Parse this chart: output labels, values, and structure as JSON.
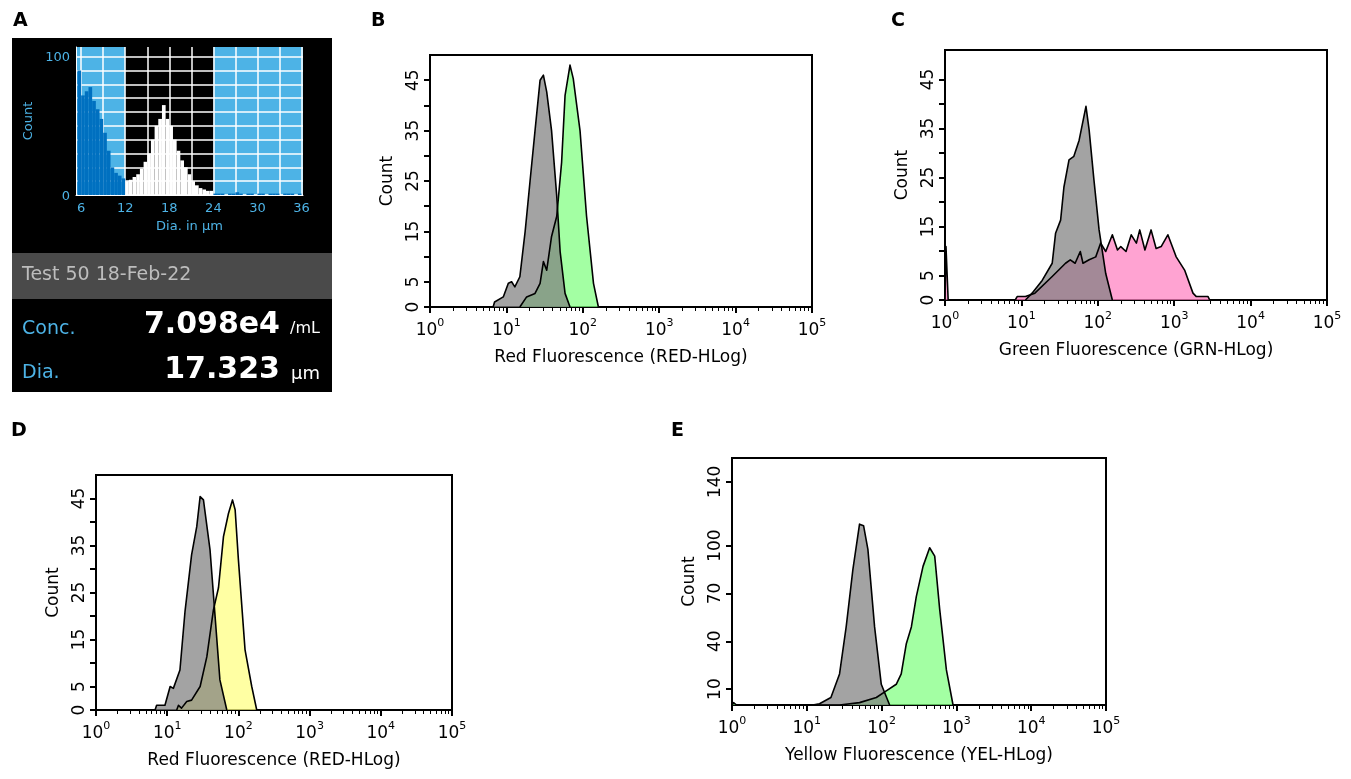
{
  "chart_data": [
    {
      "type": "histogram",
      "title": "A",
      "xlabel": "Dia. in µm",
      "ylabel": "Count",
      "bins": [
        5.5,
        6,
        6.5,
        7,
        7.5,
        8,
        8.5,
        9,
        9.5,
        10,
        10.5,
        11,
        11.5,
        12,
        12.5,
        13,
        13.5,
        14,
        14.5,
        15,
        15.5,
        16,
        16.5,
        17,
        17.5,
        18,
        18.5,
        19,
        19.5,
        20,
        20.5,
        21,
        21.5,
        22,
        22.5,
        23,
        23.5,
        24,
        24.5,
        25,
        25.5,
        26,
        26.5,
        27,
        27.5,
        28,
        28.5,
        29,
        29.5,
        30,
        30.5,
        31,
        31.5,
        32,
        32.5,
        33,
        33.5,
        34,
        34.5,
        35,
        35.5,
        36
      ],
      "values": [
        90,
        72,
        75,
        78,
        68,
        62,
        55,
        45,
        32,
        20,
        16,
        14,
        12,
        10,
        11,
        13,
        15,
        19,
        24,
        30,
        40,
        50,
        55,
        65,
        55,
        50,
        40,
        32,
        25,
        20,
        15,
        10,
        7,
        5,
        4,
        3,
        3,
        1,
        1,
        1,
        0,
        1,
        1,
        2,
        1,
        0,
        1,
        1,
        0,
        1,
        1,
        0,
        1,
        1,
        1,
        0,
        1,
        1,
        1,
        0,
        1
      ],
      "colors": [
        "#0070c0",
        "#0070c0",
        "#0070c0",
        "#0070c0",
        "#0070c0",
        "#0070c0",
        "#0070c0",
        "#0070c0",
        "#0070c0",
        "#0070c0",
        "#0070c0",
        "#0070c0",
        "#0070c0",
        "#ffffff",
        "#ffffff",
        "#ffffff",
        "#ffffff",
        "#ffffff",
        "#ffffff",
        "#ffffff",
        "#ffffff",
        "#ffffff",
        "#ffffff",
        "#ffffff",
        "#ffffff",
        "#ffffff",
        "#ffffff",
        "#ffffff",
        "#ffffff",
        "#ffffff",
        "#ffffff",
        "#ffffff",
        "#ffffff",
        "#ffffff",
        "#ffffff",
        "#ffffff",
        "#ffffff",
        "#0070c0",
        "#0070c0",
        "#0070c0",
        "#0070c0",
        "#0070c0",
        "#0070c0",
        "#0070c0",
        "#0070c0",
        "#0070c0",
        "#0070c0",
        "#0070c0",
        "#0070c0",
        "#0070c0",
        "#0070c0",
        "#0070c0",
        "#0070c0",
        "#0070c0",
        "#0070c0",
        "#0070c0",
        "#0070c0",
        "#0070c0",
        "#0070c0",
        "#0070c0",
        "#0070c0"
      ],
      "xlim": [
        5.3,
        36.2
      ],
      "xticks": [
        6,
        {
          "value": 9,
          "label": null
        },
        12,
        {
          "value": 15,
          "label": null
        },
        18,
        {
          "value": 21,
          "label": null
        },
        24,
        {
          "value": 27,
          "label": null
        },
        30,
        {
          "value": 33,
          "label": null
        },
        36
      ],
      "ylim": [
        0,
        107
      ],
      "yticks": [
        0,
        {
          "value": 10,
          "label": null
        },
        {
          "value": 20,
          "label": null
        },
        {
          "value": 30,
          "label": null
        },
        {
          "value": 40,
          "label": null
        },
        {
          "value": 50,
          "label": null
        },
        {
          "value": 60,
          "label": null
        },
        {
          "value": 70,
          "label": null
        },
        {
          "value": 80,
          "label": null
        },
        {
          "value": 90,
          "label": null
        },
        100
      ],
      "grid": true,
      "bands": [
        {
          "axis": "x",
          "from": 5.3,
          "to": 12,
          "color": "#4db3e6"
        },
        {
          "axis": "x",
          "from": 24,
          "to": 36.2,
          "color": "#4db3e6"
        }
      ],
      "annotations": [
        "Test 50  18-Feb-22",
        "Conc.",
        "7.098e4",
        "/mL",
        "Dia.",
        "17.323",
        "µm"
      ]
    },
    {
      "type": "area",
      "title": "B",
      "xlabel": "Red Fluorescence (RED-HLog)",
      "ylabel": "Count",
      "log": "x",
      "xlim": [
        1,
        100000
      ],
      "xticks": [
        {
          "value": 1,
          "label": "10$^{0}$"
        },
        {
          "value": 10,
          "label": "10$^{1}$"
        },
        {
          "value": 100,
          "label": "10$^{2}$"
        },
        {
          "value": 1000,
          "label": "10$^{3}$"
        },
        {
          "value": 10000,
          "label": "10$^{4}$"
        },
        {
          "value": 100000,
          "label": "10$^{5}$"
        }
      ],
      "ylim": [
        0,
        50
      ],
      "yticks": [
        0,
        5,
        {
          "value": 10,
          "label": null
        },
        15,
        {
          "value": 20,
          "label": null
        },
        25,
        {
          "value": 30,
          "label": null
        },
        35,
        {
          "value": 40,
          "label": null
        },
        45
      ],
      "series": [
        {
          "color": "#80ff80",
          "x": [
            15,
            18.4,
            23.7,
            27.6,
            30.5,
            33.7,
            39,
            45.6,
            52.8,
            58.6,
            68,
            75,
            92,
            112,
            138,
            160
          ],
          "values": [
            0,
            2,
            2.7,
            4.7,
            9,
            7.3,
            14,
            18,
            28.7,
            42,
            48,
            45.3,
            35,
            18,
            4.7,
            0
          ]
        },
        {
          "color": "#808080",
          "x": [
            6.7,
            7,
            9.1,
            10.6,
            11.7,
            12.9,
            15,
            17.6,
            20.4,
            23.7,
            27.6,
            30.5,
            33.7,
            39,
            45.6,
            50.5,
            58.6,
            68
          ],
          "values": [
            0,
            1,
            2,
            4.7,
            5,
            4,
            6,
            15,
            25,
            35,
            45,
            46,
            42.7,
            35,
            22,
            11,
            2.7,
            0
          ]
        }
      ]
    },
    {
      "type": "area",
      "title": "C",
      "xlabel": "Green Fluorescence (GRN-HLog)",
      "ylabel": "Count",
      "log": "x",
      "xlim": [
        1,
        100000
      ],
      "xticks": [
        {
          "value": 1,
          "label": "10$^{0}$"
        },
        {
          "value": 10,
          "label": "10$^{1}$"
        },
        {
          "value": 100,
          "label": "10$^{2}$"
        },
        {
          "value": 1000,
          "label": "10$^{3}$"
        },
        {
          "value": 10000,
          "label": "10$^{4}$"
        },
        {
          "value": 100000,
          "label": "10$^{5}$"
        }
      ],
      "ylim": [
        0,
        51
      ],
      "yticks": [
        0,
        5,
        {
          "value": 10,
          "label": null
        },
        15,
        {
          "value": 20,
          "label": null
        },
        25,
        {
          "value": 30,
          "label": null
        },
        35,
        {
          "value": 40,
          "label": null
        },
        45
      ],
      "series": [
        {
          "color": "#ff80c0",
          "x": [
            1,
            1.03,
            1.1,
            8.3,
            8.8,
            11.3,
            15,
            25.3,
            37.8,
            43.6,
            50.5,
            59,
            64,
            77,
            94,
            109,
            127,
            155,
            181,
            200,
            234,
            274,
            320,
            354,
            414,
            498,
            580,
            675,
            826,
            1062,
            1368,
            1761,
            1950,
            2773,
            2917
          ],
          "values": [
            0,
            10.9,
            0,
            0,
            0.7,
            0.7,
            1.4,
            4.8,
            7.5,
            8.2,
            7.5,
            9.9,
            7.5,
            8.2,
            8.8,
            11.6,
            9.9,
            13.3,
            10.2,
            10.9,
            9.9,
            13.3,
            11.6,
            14.3,
            10.2,
            14.3,
            10.5,
            10.9,
            13.3,
            8.8,
            6.1,
            1.4,
            0.7,
            0.7,
            0
          ]
        },
        {
          "color": "#808080",
          "x": [
            11.3,
            13.8,
            18.7,
            25.3,
            28,
            32.6,
            36,
            42,
            48.6,
            57,
            70,
            77,
            89,
            104,
            127,
            155
          ],
          "values": [
            0,
            1.4,
            4,
            7.5,
            13.6,
            16.3,
            23,
            28.6,
            29.3,
            32.6,
            39.5,
            34.7,
            24.5,
            14.3,
            5.4,
            0
          ]
        }
      ]
    },
    {
      "type": "area",
      "title": "D",
      "xlabel": "Red Fluorescence (RED-HLog)",
      "ylabel": "Count",
      "log": "x",
      "xlim": [
        1,
        100000
      ],
      "xticks": [
        {
          "value": 1,
          "label": "10$^{0}$"
        },
        {
          "value": 10,
          "label": "10$^{1}$"
        },
        {
          "value": 100,
          "label": "10$^{2}$"
        },
        {
          "value": 1000,
          "label": "10$^{3}$"
        },
        {
          "value": 10000,
          "label": "10$^{4}$"
        },
        {
          "value": 100000,
          "label": "10$^{5}$"
        }
      ],
      "ylim": [
        0,
        50
      ],
      "yticks": [
        0,
        5,
        {
          "value": 10,
          "label": null
        },
        15,
        {
          "value": 20,
          "label": null
        },
        25,
        {
          "value": 30,
          "label": null
        },
        35,
        {
          "value": 40,
          "label": null
        },
        45
      ],
      "series": [
        {
          "color": "#ffff80",
          "x": [
            13.6,
            14.4,
            15.9,
            18.8,
            22,
            29,
            36,
            44.6,
            52.5,
            61.7,
            72.5,
            82.6,
            90,
            100,
            124,
            154,
            181
          ],
          "values": [
            0,
            1,
            0.4,
            1.8,
            2.1,
            5,
            11.3,
            21.3,
            26,
            36.9,
            41.8,
            44.7,
            42.6,
            32,
            12.8,
            5,
            0
          ]
        },
        {
          "color": "#808080",
          "x": [
            6.75,
            7.1,
            9.3,
            11,
            12.2,
            15.1,
            17.8,
            22,
            26,
            29,
            32.3,
            40,
            47,
            55,
            68.7
          ],
          "values": [
            0,
            1,
            1,
            5,
            4.6,
            8.5,
            21,
            33,
            39,
            45.4,
            44.7,
            34,
            20,
            6.4,
            0
          ]
        }
      ]
    },
    {
      "type": "area",
      "title": "E",
      "xlabel": "Yellow Fluorescence (YEL-HLog)",
      "ylabel": "Count",
      "log": "x",
      "xlim": [
        1,
        100000
      ],
      "xticks": [
        {
          "value": 1,
          "label": "10$^{0}$"
        },
        {
          "value": 10,
          "label": "10$^{1}$"
        },
        {
          "value": 100,
          "label": "10$^{2}$"
        },
        {
          "value": 1000,
          "label": "10$^{3}$"
        },
        {
          "value": 10000,
          "label": "10$^{4}$"
        },
        {
          "value": 100000,
          "label": "10$^{5}$"
        }
      ],
      "ylim": [
        0,
        155
      ],
      "yticks": [
        10,
        40,
        70,
        100,
        140
      ],
      "series": [
        {
          "color": "#80ff80",
          "x": [
            1,
            1.05,
            1.15,
            27.4,
            50.7,
            85,
            115.5,
            157,
            183,
            214,
            250,
            291,
            358,
            439,
            513,
            598,
            735,
            902
          ],
          "values": [
            0,
            1.5,
            0,
            0,
            1.5,
            4.7,
            8.9,
            13,
            19.5,
            38.5,
            49,
            68,
            87,
            98.7,
            93.4,
            60,
            22,
            0
          ]
        },
        {
          "color": "#808080",
          "x": [
            12,
            14.8,
            21,
            27.4,
            33.6,
            41.3,
            50.7,
            57.4,
            65.6,
            80.6,
            99,
            128
          ],
          "values": [
            0,
            0.8,
            4.7,
            19.5,
            49,
            85,
            113.5,
            112.5,
            97.7,
            49,
            13,
            0
          ]
        }
      ]
    }
  ]
}
